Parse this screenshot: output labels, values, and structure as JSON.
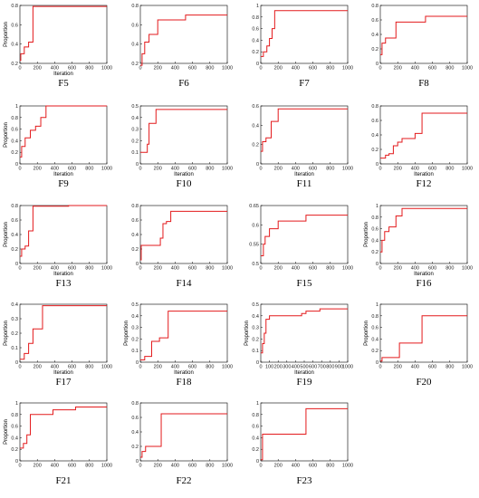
{
  "chart_data": [
    {
      "type": "line",
      "label": "F5",
      "xlabel": "Iteration",
      "ylabel": "Proportion",
      "xlim": [
        0,
        1000
      ],
      "ylim": [
        0.2,
        0.8
      ],
      "xticks": [
        "0",
        "200",
        "400",
        "600",
        "800",
        "1000"
      ],
      "yticks": [
        "0.2",
        "0.4",
        "0.6",
        "0.8"
      ],
      "series": [
        {
          "color": "#e31a1c",
          "x": [
            0,
            10,
            10,
            50,
            50,
            100,
            100,
            150,
            150,
            1000
          ],
          "y": [
            0.23,
            0.23,
            0.3,
            0.3,
            0.37,
            0.37,
            0.42,
            0.42,
            0.79,
            0.79
          ]
        }
      ]
    },
    {
      "type": "line",
      "label": "F6",
      "xlabel": "",
      "ylabel": "",
      "xlim": [
        0,
        1000
      ],
      "ylim": [
        0.2,
        0.8
      ],
      "xticks": [
        "0",
        "200",
        "400",
        "600",
        "800",
        "1000"
      ],
      "yticks": [
        "0.2",
        "0.4",
        "0.6",
        "0.8"
      ],
      "series": [
        {
          "color": "#e31a1c",
          "x": [
            0,
            20,
            20,
            50,
            50,
            100,
            100,
            200,
            200,
            520,
            520,
            1000
          ],
          "y": [
            0.18,
            0.18,
            0.3,
            0.3,
            0.42,
            0.42,
            0.5,
            0.5,
            0.65,
            0.65,
            0.7,
            0.7
          ]
        }
      ]
    },
    {
      "type": "line",
      "label": "F7",
      "xlabel": "",
      "ylabel": "",
      "xlim": [
        0,
        1000
      ],
      "ylim": [
        0,
        1
      ],
      "xticks": [
        "0",
        "200",
        "400",
        "600",
        "800",
        "1000"
      ],
      "yticks": [
        "0",
        "0.2",
        "0.4",
        "0.6",
        "0.8",
        "1"
      ],
      "series": [
        {
          "color": "#e31a1c",
          "x": [
            0,
            30,
            30,
            70,
            70,
            100,
            100,
            130,
            130,
            160,
            160,
            1000
          ],
          "y": [
            0.12,
            0.12,
            0.2,
            0.2,
            0.3,
            0.3,
            0.43,
            0.43,
            0.6,
            0.6,
            0.91,
            0.91
          ]
        }
      ]
    },
    {
      "type": "line",
      "label": "F8",
      "xlabel": "",
      "ylabel": "",
      "xlim": [
        0,
        1000
      ],
      "ylim": [
        0,
        0.8
      ],
      "xticks": [
        "0",
        "200",
        "400",
        "600",
        "800",
        "1000"
      ],
      "yticks": [
        "0",
        "0.2",
        "0.4",
        "0.6",
        "0.8"
      ],
      "series": [
        {
          "color": "#e31a1c",
          "x": [
            0,
            20,
            20,
            60,
            60,
            180,
            180,
            520,
            520,
            1000
          ],
          "y": [
            0.12,
            0.12,
            0.28,
            0.28,
            0.35,
            0.35,
            0.57,
            0.57,
            0.65,
            0.65
          ]
        }
      ]
    },
    {
      "type": "line",
      "label": "F9",
      "xlabel": "Iteration",
      "ylabel": "Proportion",
      "xlim": [
        0,
        1000
      ],
      "ylim": [
        0,
        1
      ],
      "xticks": [
        "0",
        "200",
        "400",
        "600",
        "800",
        "1000"
      ],
      "yticks": [
        "0",
        "0.2",
        "0.4",
        "0.6",
        "0.8",
        "1"
      ],
      "series": [
        {
          "color": "#e31a1c",
          "x": [
            0,
            20,
            20,
            60,
            60,
            120,
            120,
            180,
            180,
            240,
            240,
            300,
            300,
            1000
          ],
          "y": [
            0.12,
            0.12,
            0.3,
            0.3,
            0.45,
            0.45,
            0.58,
            0.58,
            0.65,
            0.65,
            0.8,
            0.8,
            1.0,
            1.0
          ]
        }
      ]
    },
    {
      "type": "line",
      "label": "F10",
      "xlabel": "Iteration",
      "ylabel": "",
      "xlim": [
        0,
        1000
      ],
      "ylim": [
        0,
        0.5
      ],
      "xticks": [
        "0",
        "200",
        "400",
        "600",
        "800",
        "1000"
      ],
      "yticks": [
        "0",
        "0.1",
        "0.2",
        "0.3",
        "0.4",
        "0.5"
      ],
      "series": [
        {
          "color": "#e31a1c",
          "x": [
            0,
            80,
            80,
            100,
            100,
            180,
            180,
            1000
          ],
          "y": [
            0.1,
            0.1,
            0.17,
            0.17,
            0.35,
            0.35,
            0.47,
            0.47
          ]
        }
      ]
    },
    {
      "type": "line",
      "label": "F11",
      "xlabel": "Iteration",
      "ylabel": "",
      "xlim": [
        0,
        1000
      ],
      "ylim": [
        0,
        0.6
      ],
      "xticks": [
        "0",
        "200",
        "400",
        "600",
        "800",
        "1000"
      ],
      "yticks": [
        "0",
        "0.2",
        "0.4",
        "0.6"
      ],
      "series": [
        {
          "color": "#e31a1c",
          "x": [
            0,
            20,
            20,
            60,
            60,
            120,
            120,
            200,
            200,
            1000
          ],
          "y": [
            0.13,
            0.13,
            0.23,
            0.23,
            0.27,
            0.27,
            0.44,
            0.44,
            0.57,
            0.57
          ]
        }
      ]
    },
    {
      "type": "line",
      "label": "F12",
      "xlabel": "Iteration",
      "ylabel": "",
      "xlim": [
        0,
        1000
      ],
      "ylim": [
        0,
        0.8
      ],
      "xticks": [
        "0",
        "200",
        "400",
        "600",
        "800",
        "1000"
      ],
      "yticks": [
        "0",
        "0.2",
        "0.4",
        "0.6",
        "0.8"
      ],
      "series": [
        {
          "color": "#e31a1c",
          "x": [
            0,
            60,
            60,
            100,
            100,
            150,
            150,
            200,
            200,
            250,
            250,
            400,
            400,
            480,
            480,
            1000
          ],
          "y": [
            0.08,
            0.08,
            0.12,
            0.12,
            0.14,
            0.14,
            0.25,
            0.25,
            0.3,
            0.3,
            0.35,
            0.35,
            0.42,
            0.42,
            0.7,
            0.7
          ]
        }
      ]
    },
    {
      "type": "line",
      "label": "F13",
      "xlabel": "Iteration",
      "ylabel": "Proportion",
      "xlim": [
        0,
        1000
      ],
      "ylim": [
        0,
        0.8
      ],
      "xticks": [
        "0",
        "200",
        "400",
        "600",
        "800",
        "1000"
      ],
      "yticks": [
        "0",
        "0.2",
        "0.4",
        "0.6",
        "0.8"
      ],
      "series": [
        {
          "color": "#e31a1c",
          "x": [
            0,
            20,
            20,
            60,
            60,
            100,
            100,
            150,
            150,
            560,
            560,
            1000
          ],
          "y": [
            0.1,
            0.1,
            0.2,
            0.2,
            0.24,
            0.24,
            0.45,
            0.45,
            0.79,
            0.79,
            0.8,
            0.8
          ]
        }
      ]
    },
    {
      "type": "line",
      "label": "F14",
      "xlabel": "",
      "ylabel": "",
      "xlim": [
        0,
        1000
      ],
      "ylim": [
        0,
        0.8
      ],
      "xticks": [
        "0",
        "200",
        "400",
        "600",
        "800",
        "1000"
      ],
      "yticks": [
        "0",
        "0.2",
        "0.4",
        "0.6",
        "0.8"
      ],
      "series": [
        {
          "color": "#e31a1c",
          "x": [
            0,
            10,
            10,
            230,
            230,
            260,
            260,
            300,
            300,
            350,
            350,
            1000
          ],
          "y": [
            0.05,
            0.05,
            0.25,
            0.25,
            0.35,
            0.35,
            0.55,
            0.55,
            0.58,
            0.58,
            0.72,
            0.72
          ]
        }
      ]
    },
    {
      "type": "line",
      "label": "F15",
      "xlabel": "",
      "ylabel": "",
      "xlim": [
        0,
        1000
      ],
      "ylim": [
        0.5,
        0.65
      ],
      "xticks": [
        "0",
        "200",
        "400",
        "600",
        "800",
        "1000"
      ],
      "yticks": [
        "0.5",
        "0.55",
        "0.6",
        "0.65"
      ],
      "series": [
        {
          "color": "#e31a1c",
          "x": [
            0,
            30,
            30,
            50,
            50,
            100,
            100,
            200,
            200,
            520,
            520,
            1000
          ],
          "y": [
            0.52,
            0.52,
            0.55,
            0.55,
            0.57,
            0.57,
            0.59,
            0.59,
            0.61,
            0.61,
            0.625,
            0.625
          ]
        }
      ]
    },
    {
      "type": "line",
      "label": "F16",
      "xlabel": "Iteration",
      "ylabel": "Proportion",
      "xlim": [
        0,
        1000
      ],
      "ylim": [
        0,
        1
      ],
      "xticks": [
        "0",
        "200",
        "400",
        "600",
        "800",
        "1000"
      ],
      "yticks": [
        "0",
        "0.2",
        "0.4",
        "0.6",
        "0.8",
        "1"
      ],
      "series": [
        {
          "color": "#e31a1c",
          "x": [
            0,
            20,
            20,
            50,
            50,
            100,
            100,
            180,
            180,
            250,
            250,
            1000
          ],
          "y": [
            0.2,
            0.2,
            0.4,
            0.4,
            0.55,
            0.55,
            0.63,
            0.63,
            0.82,
            0.82,
            0.95,
            0.95
          ]
        }
      ]
    },
    {
      "type": "line",
      "label": "F17",
      "xlabel": "Iteration",
      "ylabel": "Proportion",
      "xlim": [
        0,
        1000
      ],
      "ylim": [
        0,
        0.4
      ],
      "xticks": [
        "0",
        "200",
        "400",
        "600",
        "800",
        "1000"
      ],
      "yticks": [
        "0",
        "0.1",
        "0.2",
        "0.3",
        "0.4"
      ],
      "series": [
        {
          "color": "#e31a1c",
          "x": [
            0,
            50,
            50,
            100,
            100,
            150,
            150,
            260,
            260,
            1000
          ],
          "y": [
            0.02,
            0.02,
            0.06,
            0.06,
            0.13,
            0.13,
            0.23,
            0.23,
            0.39,
            0.39
          ]
        }
      ]
    },
    {
      "type": "line",
      "label": "F18",
      "xlabel": "Iteration",
      "ylabel": "Proportion",
      "xlim": [
        0,
        1000
      ],
      "ylim": [
        0,
        0.5
      ],
      "xticks": [
        "0",
        "200",
        "400",
        "600",
        "800",
        "1000"
      ],
      "yticks": [
        "0",
        "0.1",
        "0.2",
        "0.3",
        "0.4",
        "0.5"
      ],
      "series": [
        {
          "color": "#e31a1c",
          "x": [
            0,
            50,
            50,
            130,
            130,
            220,
            220,
            320,
            320,
            1000
          ],
          "y": [
            0.02,
            0.02,
            0.05,
            0.05,
            0.18,
            0.18,
            0.21,
            0.21,
            0.44,
            0.44
          ]
        }
      ]
    },
    {
      "type": "line",
      "label": "F19",
      "xlabel": "Iteration",
      "ylabel": "Proportion",
      "xlim": [
        0,
        1000
      ],
      "ylim": [
        0,
        0.5
      ],
      "xticks": [
        "0",
        "100",
        "200",
        "300",
        "400",
        "500",
        "600",
        "700",
        "800",
        "900",
        "1000"
      ],
      "yticks": [
        "0",
        "0.1",
        "0.2",
        "0.3",
        "0.4",
        "0.5"
      ],
      "series": [
        {
          "color": "#e31a1c",
          "x": [
            0,
            20,
            20,
            40,
            40,
            60,
            60,
            100,
            100,
            470,
            470,
            520,
            520,
            680,
            680,
            1000
          ],
          "y": [
            0.08,
            0.08,
            0.16,
            0.16,
            0.25,
            0.25,
            0.37,
            0.37,
            0.4,
            0.4,
            0.42,
            0.42,
            0.44,
            0.44,
            0.46,
            0.46
          ]
        }
      ]
    },
    {
      "type": "line",
      "label": "F20",
      "xlabel": "",
      "ylabel": "Proportion",
      "xlim": [
        0,
        1000
      ],
      "ylim": [
        0,
        1
      ],
      "xticks": [
        "0",
        "200",
        "400",
        "600",
        "800",
        "1000"
      ],
      "yticks": [
        "0",
        "0.2",
        "0.4",
        "0.6",
        "0.8",
        "1"
      ],
      "series": [
        {
          "color": "#e31a1c",
          "x": [
            0,
            20,
            20,
            220,
            220,
            480,
            480,
            1000
          ],
          "y": [
            0.02,
            0.02,
            0.08,
            0.08,
            0.33,
            0.33,
            0.8,
            0.8
          ]
        }
      ]
    },
    {
      "type": "line",
      "label": "F21",
      "xlabel": "",
      "ylabel": "Proportion",
      "xlim": [
        0,
        1000
      ],
      "ylim": [
        0,
        1
      ],
      "xticks": [
        "0",
        "200",
        "400",
        "600",
        "800",
        "1000"
      ],
      "yticks": [
        "0",
        "0.2",
        "0.4",
        "0.6",
        "0.8",
        "1"
      ],
      "series": [
        {
          "color": "#e31a1c",
          "x": [
            0,
            40,
            40,
            80,
            80,
            120,
            120,
            380,
            380,
            640,
            640,
            1000
          ],
          "y": [
            0.22,
            0.22,
            0.3,
            0.3,
            0.45,
            0.45,
            0.8,
            0.8,
            0.88,
            0.88,
            0.93,
            0.93
          ]
        }
      ]
    },
    {
      "type": "line",
      "label": "F22",
      "xlabel": "",
      "ylabel": "",
      "xlim": [
        0,
        1000
      ],
      "ylim": [
        0,
        0.8
      ],
      "xticks": [
        "0",
        "200",
        "400",
        "600",
        "800",
        "1000"
      ],
      "yticks": [
        "0",
        "0.2",
        "0.4",
        "0.6",
        "0.8"
      ],
      "series": [
        {
          "color": "#e31a1c",
          "x": [
            0,
            20,
            20,
            60,
            60,
            240,
            240,
            1000
          ],
          "y": [
            0.05,
            0.05,
            0.13,
            0.13,
            0.2,
            0.2,
            0.65,
            0.65
          ]
        }
      ]
    },
    {
      "type": "line",
      "label": "F23",
      "xlabel": "",
      "ylabel": "",
      "xlim": [
        0,
        1000
      ],
      "ylim": [
        0,
        1
      ],
      "xticks": [
        "0",
        "200",
        "400",
        "600",
        "800",
        "1000"
      ],
      "yticks": [
        "0",
        "0.2",
        "0.4",
        "0.6",
        "0.8",
        "1"
      ],
      "series": [
        {
          "color": "#e31a1c",
          "x": [
            0,
            20,
            20,
            520,
            520,
            1000
          ],
          "y": [
            0.02,
            0.02,
            0.46,
            0.46,
            0.9,
            0.9
          ]
        }
      ]
    }
  ]
}
